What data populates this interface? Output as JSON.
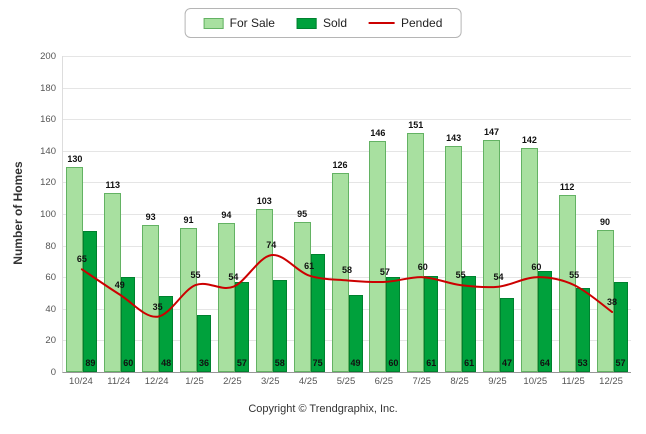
{
  "footer": "Copyright © Trendgraphix, Inc.",
  "chart_data": {
    "type": "bar",
    "subtype": "grouped-bars-with-line-overlay",
    "title": "",
    "xlabel": "",
    "ylabel": "Number of Homes",
    "ylim": [
      0,
      200
    ],
    "ytick_step": 20,
    "grid": true,
    "legend_position": "top-center",
    "categories": [
      "10/24",
      "11/24",
      "12/24",
      "1/25",
      "2/25",
      "3/25",
      "4/25",
      "5/25",
      "6/25",
      "7/25",
      "8/25",
      "9/25",
      "10/25",
      "11/25",
      "12/25"
    ],
    "series": [
      {
        "name": "For Sale",
        "type": "bar",
        "color": "#A8E0A0",
        "border": "#63B263",
        "values": [
          130,
          113,
          93,
          91,
          94,
          103,
          95,
          126,
          146,
          151,
          143,
          147,
          142,
          112,
          90
        ]
      },
      {
        "name": "Sold",
        "type": "bar",
        "color": "#00A13C",
        "border": "#00812F",
        "values": [
          89,
          60,
          48,
          36,
          57,
          58,
          75,
          49,
          60,
          61,
          61,
          47,
          64,
          53,
          57
        ]
      },
      {
        "name": "Pended",
        "type": "line",
        "color": "#CC0000",
        "values": [
          65,
          49,
          35,
          55,
          54,
          74,
          61,
          58,
          57,
          60,
          55,
          54,
          60,
          55,
          38
        ]
      }
    ]
  }
}
